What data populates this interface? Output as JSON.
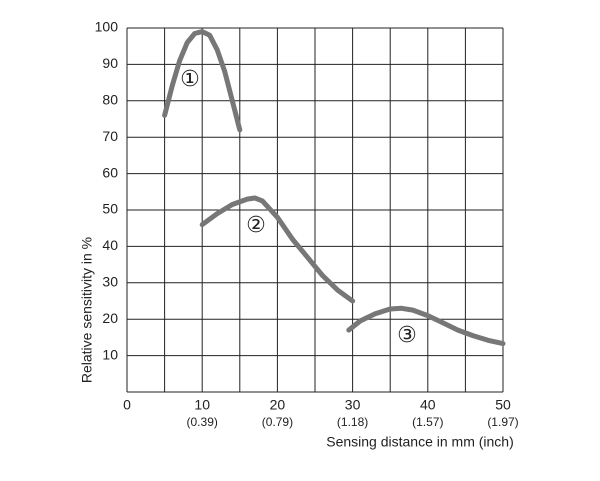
{
  "chart_data": {
    "type": "line",
    "xlabel": "Sensing distance in mm (inch)",
    "ylabel": "Relative sensitivity in %",
    "xlim": [
      0,
      50
    ],
    "ylim": [
      0,
      100
    ],
    "xticks": [
      0,
      10,
      20,
      30,
      40,
      50
    ],
    "xtick_inch_labels": [
      "(0.39)",
      "(0.79)",
      "(1.18)",
      "(1.57)",
      "(1.97)"
    ],
    "xgrid_minor": [
      5,
      15,
      25,
      35,
      45
    ],
    "yticks": [
      10,
      20,
      30,
      40,
      50,
      60,
      70,
      80,
      90,
      100
    ],
    "grid": true,
    "series": [
      {
        "name": "①",
        "color": "#777777",
        "x": [
          5,
          6,
          7,
          8,
          9,
          10,
          11,
          12,
          13,
          14,
          15
        ],
        "values": [
          76,
          84,
          91,
          96,
          98.5,
          99,
          98,
          94,
          88,
          80,
          72
        ]
      },
      {
        "name": "②",
        "color": "#777777",
        "x": [
          10,
          12,
          14,
          16,
          17,
          18,
          20,
          22,
          24,
          26,
          28,
          30
        ],
        "values": [
          46,
          49,
          51.5,
          53,
          53.3,
          52.5,
          48,
          42,
          37,
          32,
          28,
          25
        ]
      },
      {
        "name": "③",
        "color": "#777777",
        "x": [
          29.5,
          31,
          33,
          35,
          36.5,
          38,
          40,
          42,
          44,
          46,
          48,
          50
        ],
        "values": [
          17,
          19.5,
          21.5,
          22.8,
          23,
          22.5,
          21,
          19,
          17,
          15.5,
          14.2,
          13.3
        ]
      }
    ]
  }
}
